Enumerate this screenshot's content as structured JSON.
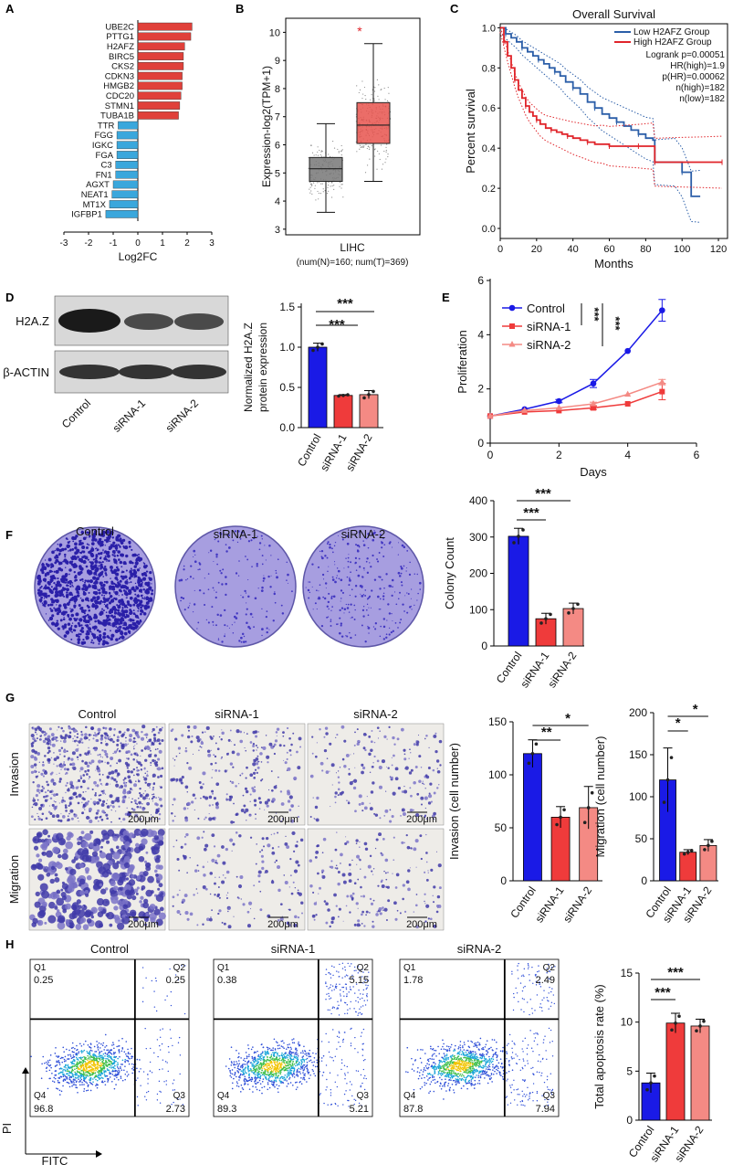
{
  "panels": {
    "A": "A",
    "B": "B",
    "C": "C",
    "D": "D",
    "E": "E",
    "F": "F",
    "G": "G",
    "H": "H"
  },
  "chart_data": [
    {
      "id": "A",
      "type": "bar",
      "orientation": "horizontal",
      "categories": [
        "UBE2C",
        "PTTG1",
        "H2AFZ",
        "BIRC5",
        "CKS2",
        "CDKN3",
        "HMGB2",
        "CDC20",
        "STMN1",
        "TUBA1B",
        "TTR",
        "FGG",
        "IGKC",
        "FGA",
        "C3",
        "FN1",
        "AGXT",
        "NEAT1",
        "MT1X",
        "IGFBP1"
      ],
      "values": [
        2.2,
        2.15,
        1.9,
        1.85,
        1.85,
        1.8,
        1.8,
        1.75,
        1.7,
        1.65,
        -0.8,
        -0.85,
        -0.85,
        -0.85,
        -0.9,
        -0.9,
        -1.0,
        -1.05,
        -1.15,
        -1.3
      ],
      "xlabel": "Log2FC",
      "xlim": [
        -3,
        3
      ],
      "xticks": [
        "-3",
        "-2",
        "-1",
        "0",
        "1",
        "2",
        "3"
      ],
      "colors": {
        "up": "#e0403a",
        "down": "#3aa7dc"
      }
    },
    {
      "id": "B",
      "type": "box",
      "ylabel": "Expression-log2(TPM+1)",
      "ylim": [
        2.8,
        10.5
      ],
      "yticks": [
        "3",
        "4",
        "5",
        "6",
        "7",
        "8",
        "9",
        "10"
      ],
      "xlabel": "LIHC",
      "subtitle": "(num(N)=160; num(T)=369)",
      "significance": "*",
      "boxes": [
        {
          "min": 3.6,
          "q1": 4.7,
          "median": 5.15,
          "q3": 5.55,
          "max": 6.75,
          "color": "#777777"
        },
        {
          "min": 4.7,
          "q1": 6.05,
          "median": 6.7,
          "q3": 7.5,
          "max": 9.6,
          "color": "#e8534d"
        }
      ]
    },
    {
      "id": "C",
      "type": "line",
      "title": "Overall Survival",
      "xlabel": "Months",
      "ylabel": "Percent survival",
      "xlim": [
        0,
        125
      ],
      "ylim": [
        -0.05,
        1.02
      ],
      "xticks": [
        "0",
        "20",
        "40",
        "60",
        "80",
        "100",
        "120"
      ],
      "yticks": [
        "0.0",
        "0.2",
        "0.4",
        "0.6",
        "0.8",
        "1.0"
      ],
      "legend": [
        "Low H2AFZ Group",
        "High H2AFZ Group"
      ],
      "stats": [
        "Logrank p=0.00051",
        "HR(high)=1.9",
        "p(HR)=0.00062",
        "n(high)=182",
        "n(low)=182"
      ],
      "series": [
        {
          "name": "Low H2AFZ Group",
          "color": "#2b5ea8",
          "x": [
            0,
            3,
            6,
            9,
            12,
            15,
            18,
            21,
            24,
            27,
            30,
            33,
            36,
            40,
            44,
            48,
            52,
            56,
            60,
            64,
            68,
            72,
            76,
            80,
            84,
            85,
            90,
            96,
            100,
            105,
            110
          ],
          "y": [
            1.0,
            0.97,
            0.95,
            0.93,
            0.9,
            0.88,
            0.86,
            0.84,
            0.82,
            0.8,
            0.78,
            0.76,
            0.73,
            0.7,
            0.67,
            0.63,
            0.6,
            0.57,
            0.55,
            0.53,
            0.51,
            0.49,
            0.47,
            0.45,
            0.44,
            0.33,
            0.33,
            0.33,
            0.28,
            0.16,
            0.16
          ]
        },
        {
          "name": "High H2AFZ Group",
          "color": "#e0242a",
          "x": [
            0,
            2,
            4,
            6,
            8,
            10,
            12,
            14,
            16,
            18,
            20,
            22,
            25,
            28,
            31,
            34,
            37,
            40,
            44,
            48,
            52,
            56,
            60,
            65,
            70,
            76,
            80,
            84,
            85,
            95,
            110,
            122
          ],
          "y": [
            1.0,
            0.93,
            0.86,
            0.8,
            0.74,
            0.69,
            0.65,
            0.61,
            0.58,
            0.56,
            0.54,
            0.52,
            0.5,
            0.49,
            0.48,
            0.47,
            0.46,
            0.45,
            0.44,
            0.43,
            0.42,
            0.42,
            0.41,
            0.41,
            0.41,
            0.41,
            0.41,
            0.41,
            0.33,
            0.33,
            0.33,
            0.33
          ]
        }
      ]
    },
    {
      "id": "D",
      "type": "bar",
      "blot_labels": [
        "H2A.Z",
        "β-ACTIN"
      ],
      "categories": [
        "Control",
        "siRNA-1",
        "siRNA-2"
      ],
      "values": [
        1.0,
        0.4,
        0.41
      ],
      "errors": [
        0.05,
        0.01,
        0.05
      ],
      "ylabel": "Normalized H2A.Z protein expression",
      "ylim": [
        0,
        1.5
      ],
      "yticks": [
        "0.0",
        "0.5",
        "1.0",
        "1.5"
      ],
      "significance": [
        "***",
        "***"
      ],
      "colors": [
        "#1a1ae6",
        "#ef3b3b",
        "#f48a84"
      ]
    },
    {
      "id": "E",
      "type": "line",
      "xlabel": "Days",
      "ylabel": "Proliferation",
      "xlim": [
        0,
        6
      ],
      "ylim": [
        0,
        6
      ],
      "xticks": [
        "0",
        "2",
        "4",
        "6"
      ],
      "yticks": [
        "0",
        "2",
        "4",
        "6"
      ],
      "significance": [
        "***",
        "***"
      ],
      "series": [
        {
          "name": "Control",
          "color": "#1a1ae6",
          "marker": "circle",
          "x": [
            0,
            1,
            2,
            3,
            4,
            5
          ],
          "y": [
            1.0,
            1.25,
            1.55,
            2.2,
            3.4,
            4.9
          ],
          "err": [
            0.03,
            0.05,
            0.06,
            0.15,
            0.05,
            0.4
          ]
        },
        {
          "name": "siRNA-1",
          "color": "#ef3b3b",
          "marker": "square",
          "x": [
            0,
            1,
            2,
            3,
            4,
            5
          ],
          "y": [
            1.0,
            1.15,
            1.2,
            1.3,
            1.45,
            1.9
          ],
          "err": [
            0.03,
            0.05,
            0.05,
            0.06,
            0.05,
            0.3
          ]
        },
        {
          "name": "siRNA-2",
          "color": "#f48a84",
          "marker": "triangle",
          "x": [
            0,
            1,
            2,
            3,
            4,
            5
          ],
          "y": [
            1.0,
            1.2,
            1.3,
            1.45,
            1.8,
            2.25
          ],
          "err": [
            0.03,
            0.05,
            0.05,
            0.06,
            0.05,
            0.1
          ]
        }
      ]
    },
    {
      "id": "F",
      "type": "bar",
      "plate_labels": [
        "Control",
        "siRNA-1",
        "siRNA-2"
      ],
      "categories": [
        "Control",
        "siRNA-1",
        "siRNA-2"
      ],
      "values": [
        302,
        75,
        103
      ],
      "errors": [
        22,
        15,
        15
      ],
      "ylabel": "Colony Count",
      "ylim": [
        0,
        400
      ],
      "yticks": [
        "0",
        "100",
        "200",
        "300",
        "400"
      ],
      "significance": [
        "***",
        "***"
      ],
      "colors": [
        "#1a1ae6",
        "#ef3b3b",
        "#f48a84"
      ]
    },
    {
      "id": "G",
      "type": "bar",
      "column_labels": [
        "Control",
        "siRNA-1",
        "siRNA-2"
      ],
      "row_labels": [
        "Invasion",
        "Migration"
      ],
      "scale_bar": "200μm",
      "subcharts": [
        {
          "ylabel": "Invasion (cell number)",
          "categories": [
            "Control",
            "siRNA-1",
            "siRNA-2"
          ],
          "values": [
            120,
            60,
            69
          ],
          "errors": [
            13,
            10,
            20
          ],
          "ylim": [
            0,
            150
          ],
          "yticks": [
            "0",
            "50",
            "100",
            "150"
          ],
          "significance": [
            "**",
            "*"
          ]
        },
        {
          "ylabel": "Migration (cell number)",
          "categories": [
            "Control",
            "siRNA-1",
            "siRNA-2"
          ],
          "values": [
            120,
            34,
            42
          ],
          "errors": [
            38,
            3,
            7
          ],
          "ylim": [
            0,
            200
          ],
          "yticks": [
            "0",
            "50",
            "100",
            "150",
            "200"
          ],
          "significance": [
            "*",
            "*"
          ]
        }
      ],
      "colors": [
        "#1a1ae6",
        "#ef3b3b",
        "#f48a84"
      ]
    },
    {
      "id": "H",
      "type": "scatter",
      "plot_titles": [
        "Control",
        "siRNA-1",
        "siRNA-2"
      ],
      "xlabel": "FITC",
      "ylabel": "PI",
      "quadrants": [
        {
          "Q1": "0.25",
          "Q2": "0.25",
          "Q3": "2.73",
          "Q4": "96.8"
        },
        {
          "Q1": "0.38",
          "Q2": "5.15",
          "Q3": "5.21",
          "Q4": "89.3"
        },
        {
          "Q1": "1.78",
          "Q2": "2.49",
          "Q3": "7.94",
          "Q4": "87.8"
        }
      ],
      "bar": {
        "ylabel": "Total apoptosis rate (%)",
        "categories": [
          "Control",
          "siRNA-1",
          "siRNA-2"
        ],
        "values": [
          3.8,
          9.9,
          9.6
        ],
        "errors": [
          1.0,
          1.0,
          0.7
        ],
        "ylim": [
          0,
          15
        ],
        "yticks": [
          "0",
          "5",
          "10",
          "15"
        ],
        "significance": [
          "***",
          "***"
        ]
      },
      "colors": [
        "#1a1ae6",
        "#ef3b3b",
        "#f48a84"
      ]
    }
  ]
}
